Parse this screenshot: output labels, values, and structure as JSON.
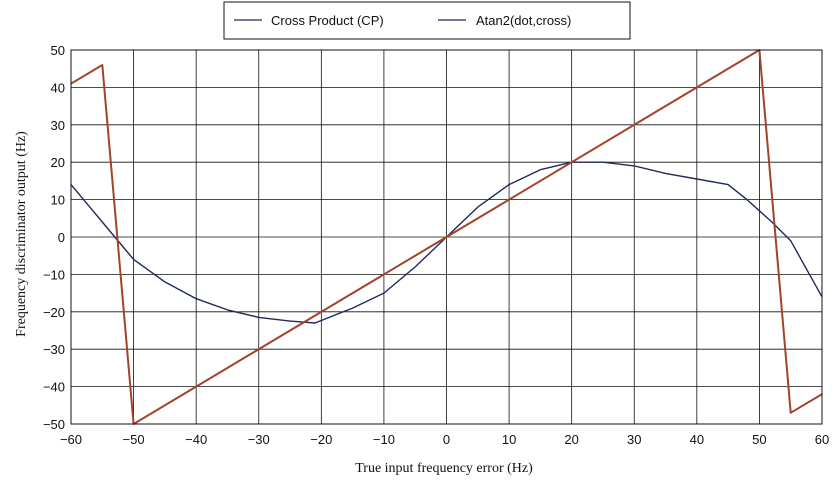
{
  "chart_data": {
    "type": "line",
    "xlabel": "True input frequency error (Hz)",
    "ylabel": "Frequency discriminator output (Hz)",
    "xlim": [
      -60,
      60
    ],
    "ylim": [
      -50,
      50
    ],
    "xticks": [
      -60,
      -50,
      -40,
      -30,
      -20,
      -10,
      0,
      10,
      20,
      30,
      40,
      50,
      60
    ],
    "yticks": [
      -50,
      -40,
      -30,
      -20,
      -10,
      0,
      10,
      20,
      30,
      40,
      50
    ],
    "xtick_labels": [
      "−60",
      "−50",
      "−40",
      "−30",
      "−20",
      "−10",
      "0",
      "10",
      "20",
      "30",
      "40",
      "50",
      "60"
    ],
    "ytick_labels": [
      "−50",
      "−40",
      "−30",
      "−20",
      "−10",
      "0",
      "10",
      "20",
      "30",
      "40",
      "50"
    ],
    "grid": true,
    "legend_position": "top-center",
    "series": [
      {
        "name": "Cross Product (CP)",
        "color": "#1f2a5c",
        "x": [
          -60,
          -57,
          -55,
          -53,
          -50,
          -45,
          -40,
          -35,
          -30,
          -25,
          -21,
          -18,
          -15,
          -10,
          -5,
          0,
          5,
          10,
          15,
          20,
          25,
          30,
          35,
          40,
          45,
          48,
          50,
          52,
          55,
          57,
          60
        ],
        "y": [
          14,
          8,
          4,
          0,
          -6,
          -12,
          -16.5,
          -19.5,
          -21.5,
          -22.5,
          -23,
          -21,
          -19,
          -15,
          -8,
          0,
          8,
          14,
          18,
          20,
          20,
          19,
          17,
          15.5,
          14,
          10,
          7,
          4,
          -1,
          -7,
          -16
        ]
      },
      {
        "name": "Atan2(dot,cross)",
        "color": "#a0442a",
        "x": [
          -60,
          -55,
          -50,
          50,
          55,
          60
        ],
        "y": [
          41,
          46,
          -50,
          50,
          -47,
          -42
        ]
      }
    ]
  }
}
